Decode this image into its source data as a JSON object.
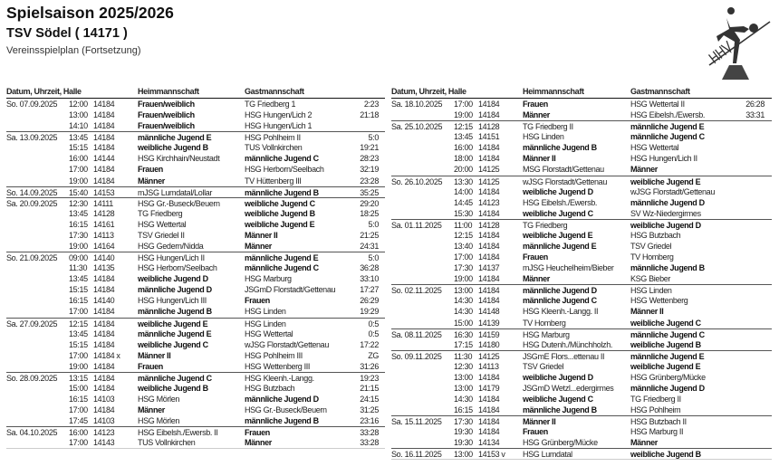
{
  "header": {
    "title": "Spielsaison 2025/2026",
    "club": "TSV Södel ( 14171 )",
    "subtitle": "Vereinsspielplan (Fortsetzung)",
    "logo_text": "HHV"
  },
  "columns": {
    "date": "Datum, Uhrzeit, Halle",
    "home": "Heimmannschaft",
    "guest": "Gastmannschaft"
  },
  "left_table": [
    {
      "date": "So. 07.09.2025",
      "time": "12:00",
      "hall": "14184",
      "home": "Frauen/weiblich",
      "guest": "TG Friedberg 1",
      "result": "2:23",
      "bold": "home"
    },
    {
      "date": "",
      "time": "13:00",
      "hall": "14184",
      "home": "Frauen/weiblich",
      "guest": "HSG Hungen/Lich 2",
      "result": "21:18",
      "bold": "home"
    },
    {
      "date": "",
      "time": "14:10",
      "hall": "14184",
      "home": "Frauen/weiblich",
      "guest": "HSG Hungen/Lich 1",
      "result": "",
      "bold": "home"
    },
    {
      "date": "Sa. 13.09.2025",
      "time": "13:45",
      "hall": "14184",
      "home": "männliche Jugend E",
      "guest": "HSG Pohlheim II",
      "result": "5:0",
      "bold": "home"
    },
    {
      "date": "",
      "time": "15:15",
      "hall": "14184",
      "home": "weibliche Jugend B",
      "guest": "TUS Vollnkirchen",
      "result": "19:21",
      "bold": "home"
    },
    {
      "date": "",
      "time": "16:00",
      "hall": "14144",
      "home": "HSG Kirchhain/Neustadt",
      "guest": "männliche Jugend C",
      "result": "28:23",
      "bold": "guest"
    },
    {
      "date": "",
      "time": "17:00",
      "hall": "14184",
      "home": "Frauen",
      "guest": "HSG Herborn/Seelbach",
      "result": "32:19",
      "bold": "home"
    },
    {
      "date": "",
      "time": "19:00",
      "hall": "14184",
      "home": "Männer",
      "guest": "TV Hüttenberg III",
      "result": "23:28",
      "bold": "home"
    },
    {
      "date": "So. 14.09.2025",
      "time": "15:40",
      "hall": "14153",
      "home": "mJSG Lumdatal/Lollar",
      "guest": "männliche Jugend B",
      "result": "35:25",
      "bold": "guest"
    },
    {
      "date": "Sa. 20.09.2025",
      "time": "12:30",
      "hall": "14111",
      "home": "HSG Gr.-Buseck/Beuern",
      "guest": "weibliche Jugend C",
      "result": "29:20",
      "bold": "guest"
    },
    {
      "date": "",
      "time": "13:45",
      "hall": "14128",
      "home": "TG Friedberg",
      "guest": "weibliche Jugend B",
      "result": "18:25",
      "bold": "guest"
    },
    {
      "date": "",
      "time": "16:15",
      "hall": "14161",
      "home": "HSG Wettertal",
      "guest": "weibliche Jugend E",
      "result": "5:0",
      "bold": "guest"
    },
    {
      "date": "",
      "time": "17:30",
      "hall": "14113",
      "home": "TSV Griedel II",
      "guest": "Männer II",
      "result": "21:25",
      "bold": "guest"
    },
    {
      "date": "",
      "time": "19:00",
      "hall": "14164",
      "home": "HSG Gedern/Nidda",
      "guest": "Männer",
      "result": "24:31",
      "bold": "guest"
    },
    {
      "date": "So. 21.09.2025",
      "time": "09:00",
      "hall": "14140",
      "home": "HSG Hungen/Lich II",
      "guest": "männliche Jugend E",
      "result": "5:0",
      "bold": "guest"
    },
    {
      "date": "",
      "time": "11:30",
      "hall": "14135",
      "home": "HSG Herborn/Seelbach",
      "guest": "männliche Jugend C",
      "result": "36:28",
      "bold": "guest"
    },
    {
      "date": "",
      "time": "13:45",
      "hall": "14184",
      "home": "weibliche Jugend D",
      "guest": "HSG Marburg",
      "result": "33:10",
      "bold": "home"
    },
    {
      "date": "",
      "time": "15:15",
      "hall": "14184",
      "home": "männliche Jugend D",
      "guest": "JSGmD Florstadt/Gettenau",
      "result": "17:27",
      "bold": "home"
    },
    {
      "date": "",
      "time": "16:15",
      "hall": "14140",
      "home": "HSG Hungen/Lich III",
      "guest": "Frauen",
      "result": "26:29",
      "bold": "guest"
    },
    {
      "date": "",
      "time": "17:00",
      "hall": "14184",
      "home": "männliche Jugend B",
      "guest": "HSG Linden",
      "result": "19:29",
      "bold": "home"
    },
    {
      "date": "Sa. 27.09.2025",
      "time": "12:15",
      "hall": "14184",
      "home": "weibliche Jugend E",
      "guest": "HSG Linden",
      "result": "0:5",
      "bold": "home"
    },
    {
      "date": "",
      "time": "13:45",
      "hall": "14184",
      "home": "männliche Jugend E",
      "guest": "HSG Wettertal",
      "result": "0:5",
      "bold": "home"
    },
    {
      "date": "",
      "time": "15:15",
      "hall": "14184",
      "home": "weibliche Jugend C",
      "guest": "wJSG Florstadt/Gettenau",
      "result": "17:22",
      "bold": "home"
    },
    {
      "date": "",
      "time": "17:00",
      "hall": "14184 x",
      "home": "Männer II",
      "guest": "HSG Pohlheim III",
      "result": "ZG",
      "bold": "home"
    },
    {
      "date": "",
      "time": "19:00",
      "hall": "14184",
      "home": "Frauen",
      "guest": "HSG Wettenberg III",
      "result": "31:26",
      "bold": "home"
    },
    {
      "date": "So. 28.09.2025",
      "time": "13:15",
      "hall": "14184",
      "home": "männliche Jugend C",
      "guest": "HSG Kleenh.-Langg.",
      "result": "19:23",
      "bold": "home"
    },
    {
      "date": "",
      "time": "15:00",
      "hall": "14184",
      "home": "weibliche Jugend B",
      "guest": "HSG Butzbach",
      "result": "21:15",
      "bold": "home"
    },
    {
      "date": "",
      "time": "16:15",
      "hall": "14103",
      "home": "HSG Mörlen",
      "guest": "männliche Jugend D",
      "result": "24:15",
      "bold": "guest"
    },
    {
      "date": "",
      "time": "17:00",
      "hall": "14184",
      "home": "Männer",
      "guest": "HSG Gr.-Buseck/Beuern",
      "result": "31:25",
      "bold": "home"
    },
    {
      "date": "",
      "time": "17:45",
      "hall": "14103",
      "home": "HSG Mörlen",
      "guest": "männliche Jugend B",
      "result": "23:16",
      "bold": "guest"
    },
    {
      "date": "Sa. 04.10.2025",
      "time": "16:00",
      "hall": "14123",
      "home": "HSG Eibelsh./Ewersb. II",
      "guest": "Frauen",
      "result": "33:28",
      "bold": "guest"
    },
    {
      "date": "",
      "time": "17:00",
      "hall": "14143",
      "home": "TUS Vollnkirchen",
      "guest": "Männer",
      "result": "33:28",
      "bold": "guest"
    }
  ],
  "right_table": [
    {
      "date": "Sa. 18.10.2025",
      "time": "17:00",
      "hall": "14184",
      "home": "Frauen",
      "guest": "HSG Wettertal II",
      "result": "26:28",
      "bold": "home"
    },
    {
      "date": "",
      "time": "19:00",
      "hall": "14184",
      "home": "Männer",
      "guest": "HSG Eibelsh./Ewersb.",
      "result": "33:31",
      "bold": "home"
    },
    {
      "date": "Sa. 25.10.2025",
      "time": "12:15",
      "hall": "14128",
      "home": "TG Friedberg II",
      "guest": "männliche Jugend E",
      "result": "",
      "bold": "guest"
    },
    {
      "date": "",
      "time": "13:45",
      "hall": "14151",
      "home": "HSG Linden",
      "guest": "männliche Jugend C",
      "result": "",
      "bold": "guest"
    },
    {
      "date": "",
      "time": "16:00",
      "hall": "14184",
      "home": "männliche Jugend B",
      "guest": "HSG Wettertal",
      "result": "",
      "bold": "home"
    },
    {
      "date": "",
      "time": "18:00",
      "hall": "14184",
      "home": "Männer II",
      "guest": "HSG Hungen/Lich II",
      "result": "",
      "bold": "home"
    },
    {
      "date": "",
      "time": "20:00",
      "hall": "14125",
      "home": "MSG Florstadt/Gettenau",
      "guest": "Männer",
      "result": "",
      "bold": "guest"
    },
    {
      "date": "So. 26.10.2025",
      "time": "13:30",
      "hall": "14125",
      "home": "wJSG Florstadt/Gettenau",
      "guest": "weibliche Jugend E",
      "result": "",
      "bold": "guest"
    },
    {
      "date": "",
      "time": "14:00",
      "hall": "14184",
      "home": "weibliche Jugend D",
      "guest": "wJSG Florstadt/Gettenau",
      "result": "",
      "bold": "home"
    },
    {
      "date": "",
      "time": "14:45",
      "hall": "14123",
      "home": "HSG Eibelsh./Ewersb.",
      "guest": "männliche Jugend D",
      "result": "",
      "bold": "guest"
    },
    {
      "date": "",
      "time": "15:30",
      "hall": "14184",
      "home": "weibliche Jugend C",
      "guest": "SV Wz-Niedergirmes",
      "result": "",
      "bold": "home"
    },
    {
      "date": "Sa. 01.11.2025",
      "time": "11:00",
      "hall": "14128",
      "home": "TG Friedberg",
      "guest": "weibliche Jugend D",
      "result": "",
      "bold": "guest"
    },
    {
      "date": "",
      "time": "12:15",
      "hall": "14184",
      "home": "weibliche Jugend E",
      "guest": "HSG Butzbach",
      "result": "",
      "bold": "home"
    },
    {
      "date": "",
      "time": "13:40",
      "hall": "14184",
      "home": "männliche Jugend E",
      "guest": "TSV Griedel",
      "result": "",
      "bold": "home"
    },
    {
      "date": "",
      "time": "17:00",
      "hall": "14184",
      "home": "Frauen",
      "guest": "TV Homberg",
      "result": "",
      "bold": "home"
    },
    {
      "date": "",
      "time": "17:30",
      "hall": "14137",
      "home": "mJSG Heuchelheim/Bieber",
      "guest": "männliche Jugend B",
      "result": "",
      "bold": "guest"
    },
    {
      "date": "",
      "time": "19:00",
      "hall": "14184",
      "home": "Männer",
      "guest": "KSG Bieber",
      "result": "",
      "bold": "home"
    },
    {
      "date": "So. 02.11.2025",
      "time": "13:00",
      "hall": "14184",
      "home": "männliche Jugend D",
      "guest": "HSG Linden",
      "result": "",
      "bold": "home"
    },
    {
      "date": "",
      "time": "14:30",
      "hall": "14184",
      "home": "männliche Jugend C",
      "guest": "HSG Wettenberg",
      "result": "",
      "bold": "home"
    },
    {
      "date": "",
      "time": "14:30",
      "hall": "14148",
      "home": "HSG Kleenh.-Langg. II",
      "guest": "Männer II",
      "result": "",
      "bold": "guest"
    },
    {
      "date": "",
      "time": "15:00",
      "hall": "14139",
      "home": "TV Homberg",
      "guest": "weibliche Jugend C",
      "result": "",
      "bold": "guest"
    },
    {
      "date": "Sa. 08.11.2025",
      "time": "16:30",
      "hall": "14159",
      "home": "HSG Marburg",
      "guest": "männliche Jugend C",
      "result": "",
      "bold": "guest"
    },
    {
      "date": "",
      "time": "17:15",
      "hall": "14180",
      "home": "HSG Dutenh./Münchholzh.",
      "guest": "weibliche Jugend B",
      "result": "",
      "bold": "guest"
    },
    {
      "date": "So. 09.11.2025",
      "time": "11:30",
      "hall": "14125",
      "home": "JSGmE Flors...ettenau II",
      "guest": "männliche Jugend E",
      "result": "",
      "bold": "guest"
    },
    {
      "date": "",
      "time": "12:30",
      "hall": "14113",
      "home": "TSV Griedel",
      "guest": "weibliche Jugend E",
      "result": "",
      "bold": "guest"
    },
    {
      "date": "",
      "time": "13:00",
      "hall": "14184",
      "home": "weibliche Jugend D",
      "guest": "HSG Grünberg/Mücke",
      "result": "",
      "bold": "home"
    },
    {
      "date": "",
      "time": "13:00",
      "hall": "14179",
      "home": "JSGmD Wetzl...edergirmes",
      "guest": "männliche Jugend D",
      "result": "",
      "bold": "guest"
    },
    {
      "date": "",
      "time": "14:30",
      "hall": "14184",
      "home": "weibliche Jugend C",
      "guest": "TG Friedberg II",
      "result": "",
      "bold": "home"
    },
    {
      "date": "",
      "time": "16:15",
      "hall": "14184",
      "home": "männliche Jugend B",
      "guest": "HSG Pohlheim",
      "result": "",
      "bold": "home"
    },
    {
      "date": "Sa. 15.11.2025",
      "time": "17:30",
      "hall": "14184",
      "home": "Männer II",
      "guest": "HSG Butzbach II",
      "result": "",
      "bold": "home"
    },
    {
      "date": "",
      "time": "19:30",
      "hall": "14184",
      "home": "Frauen",
      "guest": "HSG Marburg II",
      "result": "",
      "bold": "home"
    },
    {
      "date": "",
      "time": "19:30",
      "hall": "14134",
      "home": "HSG Grünberg/Mücke",
      "guest": "Männer",
      "result": "",
      "bold": "guest"
    },
    {
      "date": "So. 16.11.2025",
      "time": "13:00",
      "hall": "14153 v",
      "home": "HSG Lumdatal",
      "guest": "weibliche Jugend B",
      "result": "",
      "bold": "guest"
    }
  ]
}
